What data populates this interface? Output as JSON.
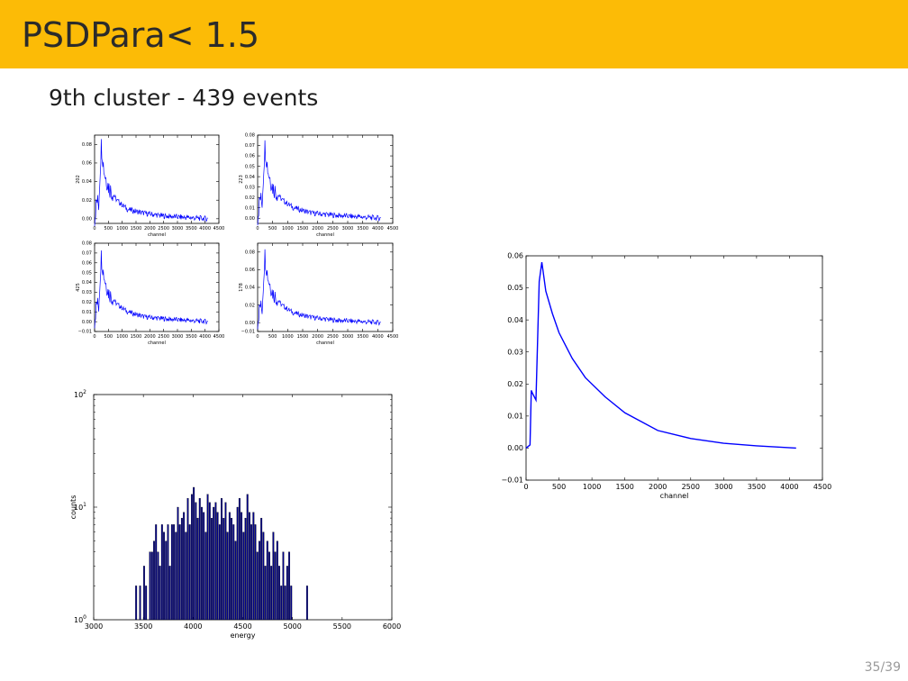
{
  "slide": {
    "title": "PSDPara< 1.5",
    "subtitle": "9th cluster - 439 events",
    "page_number": "35/39",
    "accent_color": "#fcbb06",
    "line_color": "#0000ff",
    "bar_color": "#00008b"
  },
  "chart_data": [
    {
      "type": "line",
      "panel": "small-1",
      "ylabel": "202",
      "xlabel": "channel",
      "xlim": [
        0,
        4500
      ],
      "ylim": [
        -0.005,
        0.09
      ],
      "x_ticks": [
        "0",
        "500",
        "1000",
        "1500",
        "2000",
        "2500",
        "3000",
        "3500",
        "4000",
        "4500"
      ],
      "y_ticks": [
        "0.00",
        "0.02",
        "0.04",
        "0.06",
        "0.08"
      ],
      "peak": 0.085,
      "series": [
        {
          "x": [
            0,
            80,
            150,
            240,
            260,
            350,
            500,
            800,
            1200,
            1800,
            2500,
            3000,
            4100
          ],
          "y": [
            0.0,
            0.02,
            0.015,
            0.08,
            0.075,
            0.05,
            0.035,
            0.02,
            0.01,
            0.006,
            0.003,
            0.002,
            0.0
          ]
        }
      ]
    },
    {
      "type": "line",
      "panel": "small-2",
      "ylabel": "223",
      "xlabel": "channel",
      "xlim": [
        0,
        4500
      ],
      "ylim": [
        -0.005,
        0.08
      ],
      "x_ticks": [
        "0",
        "500",
        "1000",
        "1500",
        "2000",
        "2500",
        "3000",
        "3500",
        "4000",
        "4500"
      ],
      "y_ticks": [
        "0.00",
        "0.01",
        "0.02",
        "0.03",
        "0.04",
        "0.05",
        "0.06",
        "0.07",
        "0.08"
      ],
      "peak": 0.075,
      "series": [
        {
          "x": [
            0,
            80,
            150,
            240,
            260,
            350,
            500,
            800,
            1200,
            1800,
            2500,
            3000,
            4100
          ],
          "y": [
            0.0,
            0.02,
            0.015,
            0.07,
            0.065,
            0.045,
            0.03,
            0.018,
            0.01,
            0.005,
            0.003,
            0.002,
            0.0
          ]
        }
      ]
    },
    {
      "type": "line",
      "panel": "small-3",
      "ylabel": "425",
      "xlabel": "channel",
      "xlim": [
        0,
        4500
      ],
      "ylim": [
        -0.01,
        0.08
      ],
      "x_ticks": [
        "0",
        "500",
        "1000",
        "1500",
        "2000",
        "2500",
        "3000",
        "3500",
        "4000",
        "4500"
      ],
      "y_ticks": [
        "−0.01",
        "0.00",
        "0.01",
        "0.02",
        "0.03",
        "0.04",
        "0.05",
        "0.06",
        "0.07",
        "0.08"
      ],
      "peak": 0.072,
      "series": [
        {
          "x": [
            0,
            80,
            150,
            240,
            260,
            350,
            500,
            800,
            1200,
            1800,
            2500,
            3000,
            4100
          ],
          "y": [
            0.0,
            0.02,
            0.015,
            0.068,
            0.062,
            0.045,
            0.03,
            0.018,
            0.01,
            0.005,
            0.003,
            0.002,
            0.0
          ]
        }
      ]
    },
    {
      "type": "line",
      "panel": "small-4",
      "ylabel": "178",
      "xlabel": "channel",
      "xlim": [
        0,
        4500
      ],
      "ylim": [
        -0.01,
        0.09
      ],
      "x_ticks": [
        "0",
        "500",
        "1000",
        "1500",
        "2000",
        "2500",
        "3000",
        "3500",
        "4000",
        "4500"
      ],
      "y_ticks": [
        "−0.01",
        "0.00",
        "0.02",
        "0.04",
        "0.06",
        "0.08"
      ],
      "peak": 0.08,
      "series": [
        {
          "x": [
            0,
            80,
            150,
            240,
            260,
            350,
            500,
            800,
            1200,
            1800,
            2500,
            3000,
            4100
          ],
          "y": [
            0.0,
            0.02,
            0.015,
            0.078,
            0.07,
            0.05,
            0.034,
            0.02,
            0.011,
            0.006,
            0.003,
            0.002,
            0.0
          ]
        }
      ]
    },
    {
      "type": "bar",
      "panel": "histogram",
      "title": "",
      "xlabel": "energy",
      "ylabel": "counts",
      "yscale": "log",
      "xlim": [
        3000,
        6000
      ],
      "ylim": [
        1,
        100
      ],
      "x_ticks": [
        "3000",
        "3500",
        "4000",
        "4500",
        "5000",
        "5500",
        "6000"
      ],
      "y_ticks": [
        {
          "base": "10",
          "exp": "0"
        },
        {
          "base": "10",
          "exp": "1"
        },
        {
          "base": "10",
          "exp": "2"
        }
      ],
      "bin_width": 20,
      "x": [
        3420,
        3460,
        3500,
        3520,
        3560,
        3580,
        3600,
        3620,
        3640,
        3660,
        3680,
        3700,
        3720,
        3740,
        3760,
        3780,
        3800,
        3820,
        3840,
        3860,
        3880,
        3900,
        3920,
        3940,
        3960,
        3980,
        4000,
        4020,
        4040,
        4060,
        4080,
        4100,
        4120,
        4140,
        4160,
        4180,
        4200,
        4220,
        4240,
        4260,
        4280,
        4300,
        4320,
        4340,
        4360,
        4380,
        4400,
        4420,
        4440,
        4460,
        4480,
        4500,
        4520,
        4540,
        4560,
        4580,
        4600,
        4620,
        4640,
        4660,
        4680,
        4700,
        4720,
        4740,
        4760,
        4780,
        4800,
        4820,
        4840,
        4860,
        4880,
        4900,
        4920,
        4940,
        4960,
        4980,
        5140
      ],
      "values": [
        2,
        2,
        3,
        2,
        4,
        4,
        5,
        7,
        4,
        3,
        7,
        6,
        5,
        7,
        3,
        7,
        7,
        6,
        10,
        7,
        8,
        9,
        6,
        12,
        7,
        13,
        15,
        11,
        8,
        12,
        10,
        9,
        6,
        13,
        11,
        8,
        10,
        11,
        9,
        7,
        12,
        8,
        11,
        6,
        9,
        8,
        7,
        5,
        10,
        12,
        9,
        6,
        8,
        13,
        9,
        7,
        9,
        7,
        4,
        5,
        8,
        6,
        3,
        5,
        4,
        3,
        6,
        4,
        5,
        3,
        2,
        4,
        2,
        3,
        4,
        2,
        2
      ]
    },
    {
      "type": "line",
      "panel": "average",
      "title": "",
      "xlabel": "channel",
      "ylabel": "",
      "xlim": [
        0,
        4500
      ],
      "ylim": [
        -0.01,
        0.06
      ],
      "x_ticks": [
        "0",
        "500",
        "1000",
        "1500",
        "2000",
        "2500",
        "3000",
        "3500",
        "4000",
        "4500"
      ],
      "y_ticks": [
        "−0.01",
        "0.00",
        "0.01",
        "0.02",
        "0.03",
        "0.04",
        "0.05",
        "0.06"
      ],
      "series": [
        {
          "x": [
            0,
            60,
            80,
            100,
            150,
            200,
            240,
            260,
            300,
            400,
            500,
            700,
            900,
            1200,
            1500,
            2000,
            2500,
            3000,
            3500,
            4100
          ],
          "y": [
            0.0,
            0.001,
            0.018,
            0.017,
            0.015,
            0.052,
            0.058,
            0.055,
            0.049,
            0.042,
            0.036,
            0.028,
            0.022,
            0.016,
            0.011,
            0.0055,
            0.003,
            0.0015,
            0.0007,
            0.0
          ]
        }
      ]
    }
  ]
}
